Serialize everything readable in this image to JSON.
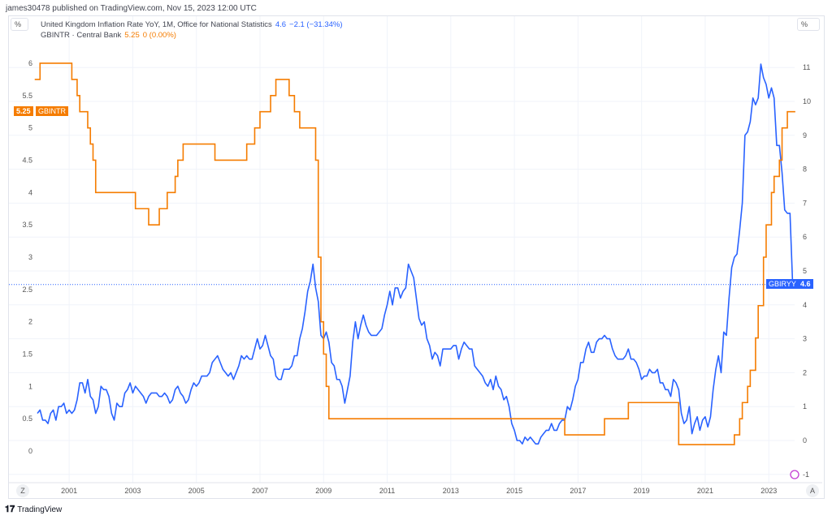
{
  "header": {
    "published": "james30478 published on TradingView.com, Nov 15, 2023 12:00 UTC"
  },
  "left_unit": "%",
  "right_unit": "%",
  "legend": {
    "series1_title": "United Kingdom Inflation Rate YoY, 1M, Office for National Statistics",
    "series1_value": "4.6",
    "series1_change": "−2.1 (−31.34%)",
    "series2_title": "GBINTR · Central Bank",
    "series2_value": "5.25",
    "series2_change": "0 (0.00%)"
  },
  "tags": {
    "gbintr_value": "5.25",
    "gbintr_name": "GBINTR",
    "gbiryy_name": "GBIRYY",
    "gbiryy_value": "4.6"
  },
  "buttons": {
    "left": "Z",
    "right": "A"
  },
  "brand": {
    "logo": "TV",
    "name": "TradingView"
  },
  "colors": {
    "inflation": "#2962ff",
    "bank_rate": "#f57c00",
    "events": "#c33ad3"
  },
  "chart_data": {
    "type": "line",
    "x_ticks": [
      "2001",
      "2003",
      "2005",
      "2007",
      "2009",
      "2011",
      "2013",
      "2015",
      "2017",
      "2019",
      "2021",
      "2023"
    ],
    "left_axis": {
      "ticks": [
        "0",
        "0.5",
        "1",
        "1.5",
        "2",
        "2.5",
        "3",
        "3.5",
        "4",
        "4.5",
        "5",
        "5.5",
        "6"
      ],
      "range": [
        -0.3,
        6.4
      ]
    },
    "right_axis": {
      "ticks": [
        "-1",
        "0",
        "1",
        "2",
        "3",
        "4",
        "5",
        "6",
        "7",
        "8",
        "9",
        "10",
        "11"
      ],
      "range": [
        -1.2,
        11.8
      ]
    },
    "grid": true,
    "series": [
      {
        "name": "GBIRYY",
        "axis": "right",
        "start": "2000-01",
        "frequency": "monthly",
        "values": [
          0.8,
          0.9,
          0.6,
          0.6,
          0.5,
          0.8,
          0.9,
          0.6,
          1.0,
          1.0,
          1.1,
          0.8,
          0.9,
          0.8,
          0.9,
          1.2,
          1.7,
          1.7,
          1.4,
          1.8,
          1.3,
          1.2,
          0.8,
          1.0,
          1.6,
          1.5,
          1.5,
          1.3,
          0.8,
          0.6,
          1.1,
          1.0,
          1.0,
          1.4,
          1.5,
          1.7,
          1.4,
          1.6,
          1.5,
          1.4,
          1.3,
          1.1,
          1.3,
          1.4,
          1.4,
          1.4,
          1.3,
          1.3,
          1.4,
          1.3,
          1.1,
          1.2,
          1.5,
          1.6,
          1.4,
          1.3,
          1.1,
          1.2,
          1.5,
          1.7,
          1.6,
          1.7,
          1.9,
          1.9,
          1.9,
          2.0,
          2.3,
          2.4,
          2.5,
          2.3,
          2.1,
          2.0,
          1.9,
          2.0,
          1.8,
          2.0,
          2.2,
          2.5,
          2.4,
          2.5,
          2.4,
          2.4,
          2.7,
          3.0,
          2.7,
          2.8,
          3.1,
          2.8,
          2.5,
          2.4,
          1.9,
          1.8,
          1.8,
          2.1,
          2.1,
          2.1,
          2.2,
          2.5,
          2.5,
          3.0,
          3.3,
          3.8,
          4.4,
          4.7,
          5.2,
          4.5,
          4.1,
          3.1,
          3.0,
          3.2,
          2.9,
          2.3,
          2.2,
          1.8,
          1.8,
          1.6,
          1.1,
          1.5,
          1.9,
          2.9,
          3.5,
          3.0,
          3.4,
          3.7,
          3.4,
          3.2,
          3.1,
          3.1,
          3.1,
          3.2,
          3.3,
          3.7,
          4.0,
          4.4,
          4.0,
          4.5,
          4.5,
          4.2,
          4.4,
          4.5,
          5.2,
          5.0,
          4.8,
          4.2,
          3.6,
          3.4,
          3.5,
          3.0,
          2.8,
          2.4,
          2.6,
          2.5,
          2.2,
          2.7,
          2.7,
          2.7,
          2.7,
          2.8,
          2.8,
          2.4,
          2.7,
          2.9,
          2.8,
          2.7,
          2.7,
          2.2,
          2.1,
          2.0,
          1.9,
          1.7,
          1.6,
          1.8,
          1.5,
          1.9,
          1.6,
          1.5,
          1.2,
          1.3,
          1.0,
          0.5,
          0.3,
          0.0,
          0.0,
          -0.1,
          0.1,
          0.0,
          0.1,
          0.0,
          -0.1,
          -0.1,
          0.1,
          0.2,
          0.3,
          0.3,
          0.5,
          0.3,
          0.3,
          0.5,
          0.6,
          0.6,
          1.0,
          0.9,
          1.2,
          1.6,
          1.8,
          2.3,
          2.3,
          2.7,
          2.9,
          2.6,
          2.6,
          2.9,
          3.0,
          3.0,
          3.1,
          3.0,
          3.0,
          2.7,
          2.5,
          2.4,
          2.4,
          2.4,
          2.5,
          2.7,
          2.4,
          2.4,
          2.3,
          2.1,
          1.8,
          1.9,
          1.9,
          2.1,
          2.0,
          2.0,
          2.1,
          1.7,
          1.7,
          1.5,
          1.5,
          1.3,
          1.8,
          1.7,
          1.5,
          0.8,
          0.5,
          0.6,
          1.0,
          0.2,
          0.5,
          0.7,
          0.3,
          0.6,
          0.7,
          0.4,
          0.7,
          1.5,
          2.1,
          2.5,
          2.0,
          3.2,
          3.1,
          4.2,
          5.1,
          5.4,
          5.5,
          6.2,
          7.0,
          9.0,
          9.1,
          9.4,
          10.1,
          9.9,
          10.1,
          11.1,
          10.7,
          10.5,
          10.1,
          10.4,
          10.1,
          8.7,
          8.7,
          7.9,
          6.8,
          6.7,
          6.7,
          4.6
        ]
      },
      {
        "name": "GBINTR",
        "axis": "left",
        "type": "step",
        "end": "2023-11",
        "changes": [
          [
            "1999-12",
            5.75
          ],
          [
            "2000-02",
            6.0
          ],
          [
            "2001-02",
            5.75
          ],
          [
            "2001-04",
            5.5
          ],
          [
            "2001-05",
            5.25
          ],
          [
            "2001-08",
            5.0
          ],
          [
            "2001-09",
            4.75
          ],
          [
            "2001-10",
            4.5
          ],
          [
            "2001-11",
            4.0
          ],
          [
            "2003-02",
            3.75
          ],
          [
            "2003-07",
            3.5
          ],
          [
            "2003-11",
            3.75
          ],
          [
            "2004-02",
            4.0
          ],
          [
            "2004-05",
            4.25
          ],
          [
            "2004-06",
            4.5
          ],
          [
            "2004-08",
            4.75
          ],
          [
            "2005-08",
            4.5
          ],
          [
            "2006-08",
            4.75
          ],
          [
            "2006-11",
            5.0
          ],
          [
            "2007-01",
            5.25
          ],
          [
            "2007-05",
            5.5
          ],
          [
            "2007-07",
            5.75
          ],
          [
            "2007-12",
            5.5
          ],
          [
            "2008-02",
            5.25
          ],
          [
            "2008-04",
            5.0
          ],
          [
            "2008-10",
            4.5
          ],
          [
            "2008-11",
            3.0
          ],
          [
            "2008-12",
            2.0
          ],
          [
            "2009-01",
            1.5
          ],
          [
            "2009-02",
            1.0
          ],
          [
            "2009-03",
            0.5
          ],
          [
            "2016-08",
            0.25
          ],
          [
            "2017-11",
            0.5
          ],
          [
            "2018-08",
            0.75
          ],
          [
            "2020-03",
            0.1
          ],
          [
            "2021-12",
            0.25
          ],
          [
            "2022-02",
            0.5
          ],
          [
            "2022-03",
            0.75
          ],
          [
            "2022-05",
            1.0
          ],
          [
            "2022-06",
            1.25
          ],
          [
            "2022-08",
            1.75
          ],
          [
            "2022-09",
            2.25
          ],
          [
            "2022-11",
            3.0
          ],
          [
            "2022-12",
            3.5
          ],
          [
            "2023-02",
            4.0
          ],
          [
            "2023-03",
            4.25
          ],
          [
            "2023-05",
            4.5
          ],
          [
            "2023-06",
            5.0
          ],
          [
            "2023-08",
            5.25
          ]
        ]
      }
    ]
  }
}
